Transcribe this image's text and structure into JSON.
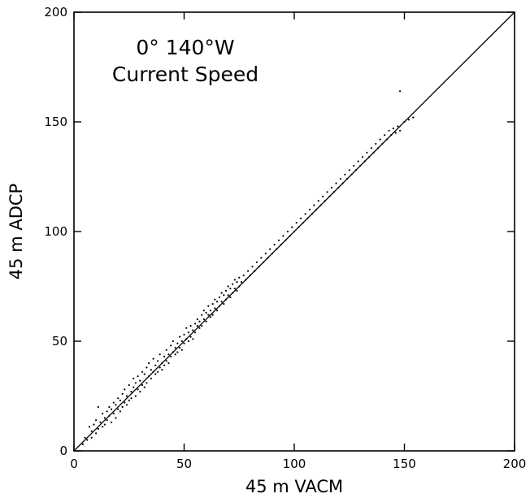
{
  "chart_data": {
    "type": "scatter",
    "title_lines": [
      "0° 140°W",
      "Current Speed"
    ],
    "xlabel": "45 m VACM",
    "ylabel": "45 m ADCP",
    "xlim": [
      0,
      200
    ],
    "ylim": [
      0,
      200
    ],
    "xticks": [
      0,
      50,
      100,
      150,
      200
    ],
    "yticks": [
      0,
      50,
      100,
      150,
      200
    ],
    "xtick_labels": [
      "0",
      "50",
      "100",
      "150",
      "200"
    ],
    "ytick_labels": [
      "0",
      "50",
      "100",
      "150",
      "200"
    ],
    "grid": false,
    "reference_line": {
      "from": [
        0,
        0
      ],
      "to": [
        200,
        200
      ]
    },
    "points": [
      [
        4,
        3
      ],
      [
        5,
        6
      ],
      [
        6,
        5
      ],
      [
        7,
        11
      ],
      [
        8,
        6
      ],
      [
        8,
        9
      ],
      [
        9,
        12
      ],
      [
        10,
        8
      ],
      [
        10,
        14
      ],
      [
        11,
        10
      ],
      [
        11,
        20
      ],
      [
        12,
        13
      ],
      [
        13,
        11
      ],
      [
        13,
        17
      ],
      [
        14,
        15
      ],
      [
        14,
        12
      ],
      [
        15,
        18
      ],
      [
        15,
        14
      ],
      [
        16,
        16
      ],
      [
        16,
        20
      ],
      [
        17,
        13
      ],
      [
        17,
        19
      ],
      [
        18,
        22
      ],
      [
        18,
        17
      ],
      [
        19,
        15
      ],
      [
        19,
        21
      ],
      [
        20,
        24
      ],
      [
        20,
        19
      ],
      [
        21,
        18
      ],
      [
        21,
        23
      ],
      [
        22,
        26
      ],
      [
        22,
        20
      ],
      [
        23,
        22
      ],
      [
        23,
        28
      ],
      [
        24,
        21
      ],
      [
        24,
        25
      ],
      [
        25,
        30
      ],
      [
        25,
        23
      ],
      [
        26,
        27
      ],
      [
        26,
        24
      ],
      [
        27,
        29
      ],
      [
        27,
        33
      ],
      [
        28,
        25
      ],
      [
        28,
        31
      ],
      [
        29,
        28
      ],
      [
        29,
        34
      ],
      [
        30,
        27
      ],
      [
        30,
        32
      ],
      [
        31,
        36
      ],
      [
        31,
        30
      ],
      [
        32,
        29
      ],
      [
        32,
        35
      ],
      [
        33,
        38
      ],
      [
        33,
        31
      ],
      [
        34,
        34
      ],
      [
        34,
        40
      ],
      [
        35,
        33
      ],
      [
        35,
        37
      ],
      [
        36,
        36
      ],
      [
        36,
        42
      ],
      [
        37,
        35
      ],
      [
        37,
        39
      ],
      [
        38,
        41
      ],
      [
        38,
        36
      ],
      [
        39,
        38
      ],
      [
        39,
        44
      ],
      [
        40,
        40
      ],
      [
        40,
        37
      ],
      [
        41,
        43
      ],
      [
        41,
        39
      ],
      [
        42,
        46
      ],
      [
        42,
        41
      ],
      [
        43,
        44
      ],
      [
        43,
        40
      ],
      [
        44,
        48
      ],
      [
        44,
        43
      ],
      [
        45,
        45
      ],
      [
        45,
        50
      ],
      [
        46,
        44
      ],
      [
        46,
        47
      ],
      [
        47,
        49
      ],
      [
        47,
        45
      ],
      [
        48,
        52
      ],
      [
        48,
        47
      ],
      [
        49,
        50
      ],
      [
        49,
        46
      ],
      [
        50,
        53
      ],
      [
        50,
        49
      ],
      [
        51,
        51
      ],
      [
        51,
        56
      ],
      [
        52,
        50
      ],
      [
        52,
        54
      ],
      [
        53,
        57
      ],
      [
        53,
        52
      ],
      [
        54,
        55
      ],
      [
        54,
        51
      ],
      [
        55,
        58
      ],
      [
        55,
        54
      ],
      [
        56,
        57
      ],
      [
        56,
        60
      ],
      [
        57,
        56
      ],
      [
        57,
        59
      ],
      [
        58,
        62
      ],
      [
        58,
        57
      ],
      [
        59,
        60
      ],
      [
        59,
        64
      ],
      [
        60,
        59
      ],
      [
        60,
        63
      ],
      [
        61,
        62
      ],
      [
        61,
        66
      ],
      [
        62,
        61
      ],
      [
        62,
        64
      ],
      [
        63,
        67
      ],
      [
        63,
        62
      ],
      [
        64,
        65
      ],
      [
        64,
        69
      ],
      [
        65,
        64
      ],
      [
        65,
        68
      ],
      [
        66,
        70
      ],
      [
        66,
        66
      ],
      [
        67,
        68
      ],
      [
        67,
        72
      ],
      [
        68,
        67
      ],
      [
        68,
        71
      ],
      [
        69,
        73
      ],
      [
        69,
        69
      ],
      [
        70,
        71
      ],
      [
        70,
        75
      ],
      [
        71,
        70
      ],
      [
        71,
        74
      ],
      [
        72,
        76
      ],
      [
        72,
        72
      ],
      [
        73,
        74
      ],
      [
        73,
        78
      ],
      [
        74,
        73
      ],
      [
        74,
        77
      ],
      [
        75,
        79
      ],
      [
        75,
        75
      ],
      [
        76,
        77
      ],
      [
        77,
        80
      ],
      [
        78,
        78
      ],
      [
        79,
        82
      ],
      [
        80,
        80
      ],
      [
        81,
        84
      ],
      [
        82,
        82
      ],
      [
        83,
        86
      ],
      [
        84,
        84
      ],
      [
        85,
        88
      ],
      [
        86,
        86
      ],
      [
        87,
        90
      ],
      [
        88,
        88
      ],
      [
        89,
        92
      ],
      [
        90,
        90
      ],
      [
        91,
        94
      ],
      [
        92,
        92
      ],
      [
        93,
        96
      ],
      [
        94,
        94
      ],
      [
        95,
        98
      ],
      [
        96,
        96
      ],
      [
        97,
        100
      ],
      [
        98,
        98
      ],
      [
        99,
        102
      ],
      [
        100,
        100
      ],
      [
        101,
        104
      ],
      [
        102,
        102
      ],
      [
        103,
        106
      ],
      [
        104,
        104
      ],
      [
        105,
        108
      ],
      [
        106,
        106
      ],
      [
        107,
        110
      ],
      [
        108,
        108
      ],
      [
        109,
        112
      ],
      [
        110,
        110
      ],
      [
        111,
        114
      ],
      [
        112,
        112
      ],
      [
        113,
        116
      ],
      [
        114,
        114
      ],
      [
        115,
        118
      ],
      [
        116,
        116
      ],
      [
        117,
        120
      ],
      [
        118,
        118
      ],
      [
        119,
        122
      ],
      [
        120,
        120
      ],
      [
        121,
        124
      ],
      [
        122,
        122
      ],
      [
        123,
        126
      ],
      [
        124,
        124
      ],
      [
        125,
        128
      ],
      [
        126,
        126
      ],
      [
        127,
        130
      ],
      [
        128,
        128
      ],
      [
        129,
        132
      ],
      [
        130,
        130
      ],
      [
        131,
        134
      ],
      [
        132,
        132
      ],
      [
        133,
        136
      ],
      [
        134,
        134
      ],
      [
        135,
        138
      ],
      [
        136,
        136
      ],
      [
        137,
        140
      ],
      [
        138,
        138
      ],
      [
        139,
        142
      ],
      [
        140,
        140
      ],
      [
        141,
        144
      ],
      [
        142,
        142
      ],
      [
        143,
        146
      ],
      [
        144,
        144
      ],
      [
        145,
        147
      ],
      [
        146,
        145
      ],
      [
        147,
        148
      ],
      [
        148,
        146
      ],
      [
        150,
        150
      ],
      [
        152,
        151
      ],
      [
        154,
        152
      ],
      [
        148,
        164
      ]
    ]
  }
}
